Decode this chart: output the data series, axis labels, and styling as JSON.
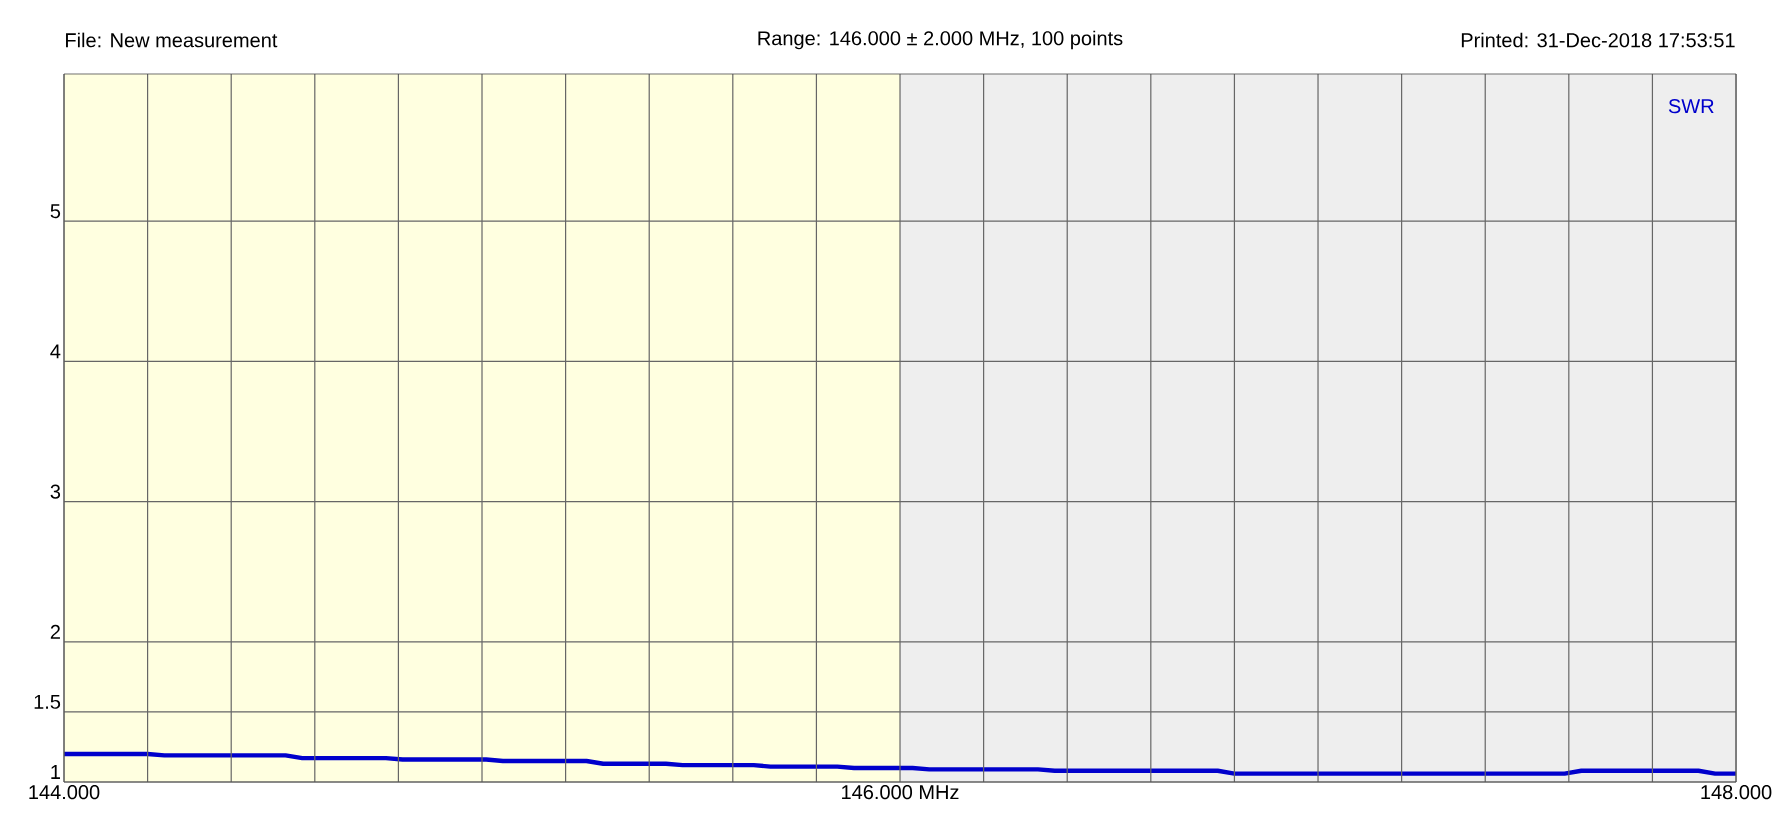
{
  "chart_data": {
    "type": "line",
    "annotations": [
      "File: New measurement",
      "Range: 146.000 ± 2.000 MHz, 100 points",
      "Printed: 31-Dec-2018 17:53:51"
    ],
    "series": [
      {
        "name": "SWR",
        "color": "#0000cc",
        "x": [
          144.0,
          144.2,
          144.24,
          144.53,
          144.57,
          144.77,
          144.81,
          145.01,
          145.05,
          145.25,
          145.29,
          145.44,
          145.48,
          145.65,
          145.69,
          145.85,
          145.89,
          146.03,
          146.07,
          146.33,
          146.37,
          146.76,
          146.8,
          147.59,
          147.63,
          147.91,
          147.95,
          148.0
        ],
        "values": [
          1.2,
          1.2,
          1.19,
          1.19,
          1.17,
          1.17,
          1.16,
          1.16,
          1.15,
          1.15,
          1.13,
          1.13,
          1.12,
          1.12,
          1.11,
          1.11,
          1.1,
          1.1,
          1.09,
          1.09,
          1.08,
          1.08,
          1.06,
          1.06,
          1.08,
          1.08,
          1.06,
          1.06
        ]
      }
    ],
    "xlim": [
      144,
      148
    ],
    "ylim": [
      1,
      6.05
    ],
    "xticks": [
      {
        "value": 144,
        "label": "144.000"
      },
      {
        "value": 144.2,
        "label": null
      },
      {
        "value": 144.4,
        "label": null
      },
      {
        "value": 144.6,
        "label": null
      },
      {
        "value": 144.8,
        "label": null
      },
      {
        "value": 145,
        "label": null
      },
      {
        "value": 145.2,
        "label": null
      },
      {
        "value": 145.4,
        "label": null
      },
      {
        "value": 145.6,
        "label": null
      },
      {
        "value": 145.8,
        "label": null
      },
      {
        "value": 146,
        "label": "146.000 MHz"
      },
      {
        "value": 146.2,
        "label": null
      },
      {
        "value": 146.4,
        "label": null
      },
      {
        "value": 146.6,
        "label": null
      },
      {
        "value": 146.8,
        "label": null
      },
      {
        "value": 147,
        "label": null
      },
      {
        "value": 147.2,
        "label": null
      },
      {
        "value": 147.4,
        "label": null
      },
      {
        "value": 147.6,
        "label": null
      },
      {
        "value": 147.8,
        "label": null
      },
      {
        "value": 148,
        "label": "148.000"
      }
    ],
    "yticks": [
      1,
      1.5,
      2,
      3,
      4,
      5
    ],
    "bands": [
      {
        "axis": "x",
        "from": 144,
        "to": 146,
        "color": "#ffffe0"
      },
      {
        "axis": "x",
        "from": 146,
        "to": 148,
        "color": "#eeeeee"
      }
    ],
    "grid": true,
    "legend": "top right",
    "marker": "none",
    "line_style": "solid"
  }
}
